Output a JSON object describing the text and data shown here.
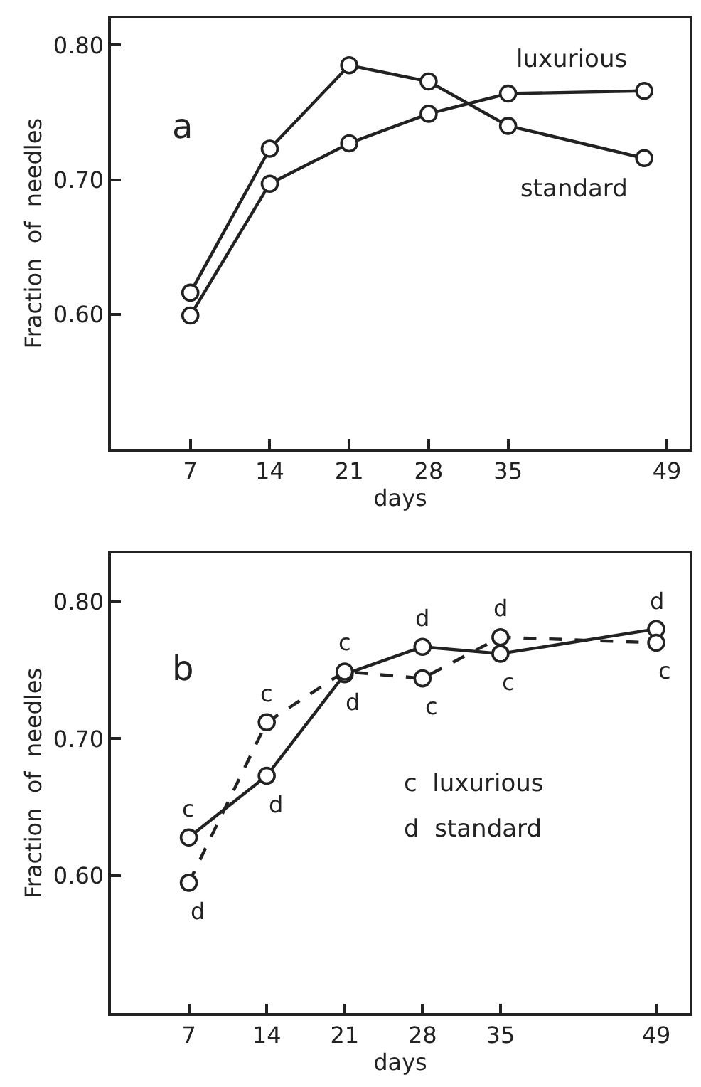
{
  "chart_data": [
    {
      "type": "line",
      "xlabel": "days",
      "ylabel": "Fraction  of  needles",
      "x": [
        7,
        14,
        21,
        28,
        35,
        47
      ],
      "series": [
        {
          "name": "luxurious",
          "color": "#222222",
          "values": [
            0.599,
            0.697,
            0.727,
            0.749,
            0.764,
            0.766
          ]
        },
        {
          "name": "standard",
          "color": "#222222",
          "values": [
            0.616,
            0.723,
            0.785,
            0.773,
            0.74,
            0.716
          ]
        }
      ],
      "xlim": [
        0,
        51
      ],
      "ylim": [
        0.5,
        0.82
      ],
      "xticks": [
        7,
        14,
        21,
        28,
        35,
        49
      ],
      "yticks": [
        {
          "value": 0.6,
          "label": "0.60"
        },
        {
          "value": 0.7,
          "label": "0.70"
        },
        {
          "value": 0.8,
          "label": "0.80"
        }
      ],
      "annotations": [
        "a"
      ],
      "marker": "circle",
      "line_style": "solid",
      "legend": false
    },
    {
      "type": "line",
      "xlabel": "days",
      "ylabel": "Fraction  of  needles",
      "x": [
        7,
        14,
        21,
        28,
        35,
        49
      ],
      "series": [
        {
          "color": "#222222",
          "line_style": "solid",
          "values": [
            0.628,
            0.673,
            0.747,
            0.767,
            0.762,
            0.78
          ]
        },
        {
          "color": "#222222",
          "line_style": "dashed",
          "values": [
            0.595,
            0.712,
            0.749,
            0.744,
            0.774,
            0.77
          ]
        }
      ],
      "xlim": [
        0,
        52
      ],
      "ylim": [
        0.5,
        0.835
      ],
      "xticks": [
        7,
        14,
        21,
        28,
        35,
        49
      ],
      "yticks": [
        {
          "value": 0.6,
          "label": "0.60"
        },
        {
          "value": 0.7,
          "label": "0.70"
        },
        {
          "value": 0.8,
          "label": "0.80"
        }
      ],
      "annotations": [
        "b",
        "c  luxurious",
        "d  standard",
        {
          "text": "c",
          "x": 7,
          "y": 0.628
        },
        {
          "text": "d",
          "x": 7,
          "y": 0.595
        },
        {
          "text": "c",
          "x": 14,
          "y": 0.712
        },
        {
          "text": "d",
          "x": 14,
          "y": 0.673
        },
        {
          "text": "c",
          "x": 21,
          "y": 0.749
        },
        {
          "text": "d",
          "x": 21,
          "y": 0.747
        },
        {
          "text": "d",
          "x": 28,
          "y": 0.767
        },
        {
          "text": "c",
          "x": 28,
          "y": 0.744
        },
        {
          "text": "d",
          "x": 35,
          "y": 0.774
        },
        {
          "text": "c",
          "x": 35,
          "y": 0.762
        },
        {
          "text": "d",
          "x": 49,
          "y": 0.78
        },
        {
          "text": "c",
          "x": 49,
          "y": 0.77
        }
      ],
      "marker": "circle",
      "legend": false
    }
  ]
}
